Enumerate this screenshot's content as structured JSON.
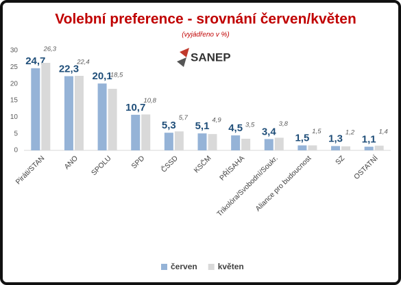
{
  "chart_data": {
    "type": "bar",
    "title": "Volební preference - srovnání červen/květen",
    "subtitle": "(vyjádřeno v %)",
    "logo_text": "SANEP",
    "categories": [
      "Piráti/STAN",
      "ANO",
      "SPOLU",
      "SPD",
      "ČSSD",
      "KSČM",
      "PŘÍSAHA",
      "Trikolóra/Svobodní/Soukr.",
      "Aliance pro budoucnost",
      "SZ",
      "OSTATNÍ"
    ],
    "series": [
      {
        "name": "červen",
        "color": "#95b3d7",
        "values": [
          24.7,
          22.3,
          20.1,
          10.7,
          5.3,
          5.1,
          4.5,
          3.4,
          1.5,
          1.3,
          1.1
        ],
        "value_labels": [
          "24,7",
          "22,3",
          "20,1",
          "10,7",
          "5,3",
          "5,1",
          "4,5",
          "3,4",
          "1,5",
          "1,3",
          "1,1"
        ]
      },
      {
        "name": "květen",
        "color": "#d9d9d9",
        "values": [
          26.3,
          22.4,
          18.5,
          10.8,
          5.7,
          4.9,
          3.5,
          3.8,
          1.5,
          1.2,
          1.4
        ],
        "value_labels": [
          "26,3",
          "22,4",
          "18,5",
          "10,8",
          "5,7",
          "4,9",
          "3,5",
          "3,8",
          "1,5",
          "1,2",
          "1,4"
        ]
      }
    ],
    "ylim": [
      0,
      30
    ],
    "yticks": [
      0,
      5,
      10,
      15,
      20,
      25,
      30
    ],
    "grid": false
  }
}
